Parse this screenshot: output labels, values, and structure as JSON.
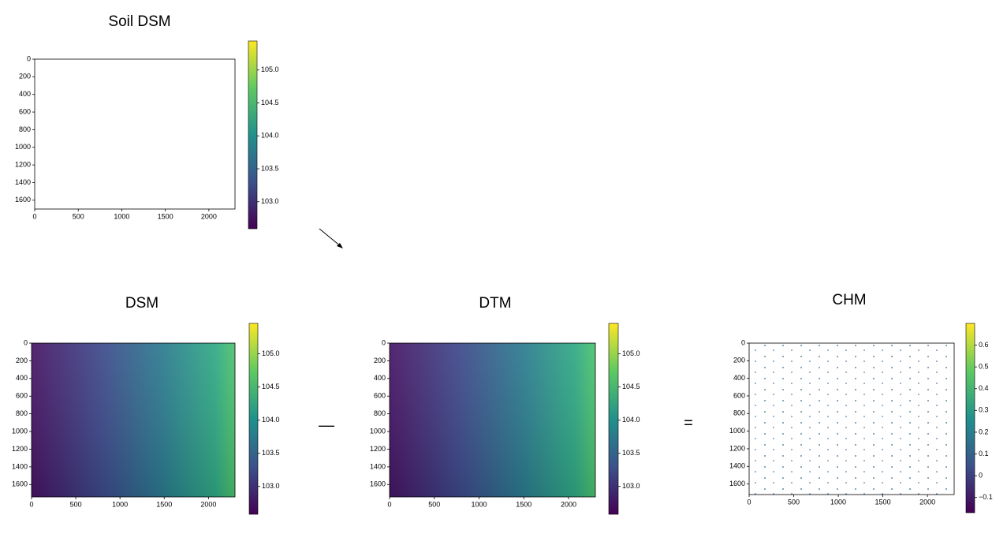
{
  "chart_data": [
    {
      "type": "heatmap",
      "title": "Soil DSM",
      "colormap": "viridis",
      "fill": "speckle",
      "xlim": [
        0,
        2300
      ],
      "xticks": [
        0,
        500,
        1000,
        1500,
        2000
      ],
      "ylim": [
        0,
        1700
      ],
      "yticks": [
        0,
        200,
        400,
        600,
        800,
        1000,
        1200,
        1400,
        1600
      ],
      "clim": [
        102.59,
        105.44
      ],
      "cticks": [
        {
          "value": 103,
          "label": "103.0"
        },
        {
          "value": 103.5,
          "label": "103.5"
        },
        {
          "value": 104,
          "label": "104.0"
        },
        {
          "value": 104.5,
          "label": "104.5"
        },
        {
          "value": 105,
          "label": "105.0"
        }
      ]
    },
    {
      "type": "heatmap",
      "title": "DSM",
      "colormap": "viridis",
      "fill": "smooth",
      "xlim": [
        0,
        2300
      ],
      "xticks": [
        0,
        500,
        1000,
        1500,
        2000
      ],
      "ylim": [
        0,
        1740
      ],
      "yticks": [
        0,
        200,
        400,
        600,
        800,
        1000,
        1200,
        1400,
        1600
      ],
      "clim": [
        102.58,
        105.46
      ],
      "cticks": [
        {
          "value": 103,
          "label": "103.0"
        },
        {
          "value": 103.5,
          "label": "103.5"
        },
        {
          "value": 104,
          "label": "104.0"
        },
        {
          "value": 104.5,
          "label": "104.5"
        },
        {
          "value": 105,
          "label": "105.0"
        }
      ]
    },
    {
      "type": "heatmap",
      "title": "DTM",
      "colormap": "viridis",
      "fill": "smooth",
      "xlim": [
        0,
        2300
      ],
      "xticks": [
        0,
        500,
        1000,
        1500,
        2000
      ],
      "ylim": [
        0,
        1740
      ],
      "yticks": [
        0,
        200,
        400,
        600,
        800,
        1000,
        1200,
        1400,
        1600
      ],
      "clim": [
        102.58,
        105.46
      ],
      "cticks": [
        {
          "value": 103,
          "label": "103.0"
        },
        {
          "value": 103.5,
          "label": "103.5"
        },
        {
          "value": 104,
          "label": "104.0"
        },
        {
          "value": 104.5,
          "label": "104.5"
        },
        {
          "value": 105,
          "label": "105.0"
        }
      ]
    },
    {
      "type": "heatmap",
      "title": "CHM",
      "colormap": "viridis",
      "fill": "sparse",
      "xlim": [
        0,
        2300
      ],
      "xticks": [
        0,
        500,
        1000,
        1500,
        2000
      ],
      "ylim": [
        0,
        1720
      ],
      "yticks": [
        0,
        200,
        400,
        600,
        800,
        1000,
        1200,
        1400,
        1600
      ],
      "clim": [
        -0.17,
        0.7
      ],
      "cticks": [
        {
          "value": -0.1,
          "label": "−0.1"
        },
        0.0,
        0.1,
        0.2,
        0.3,
        0.4,
        0.5,
        0.6
      ]
    }
  ],
  "operators": {
    "minus": "—",
    "equals": "="
  }
}
